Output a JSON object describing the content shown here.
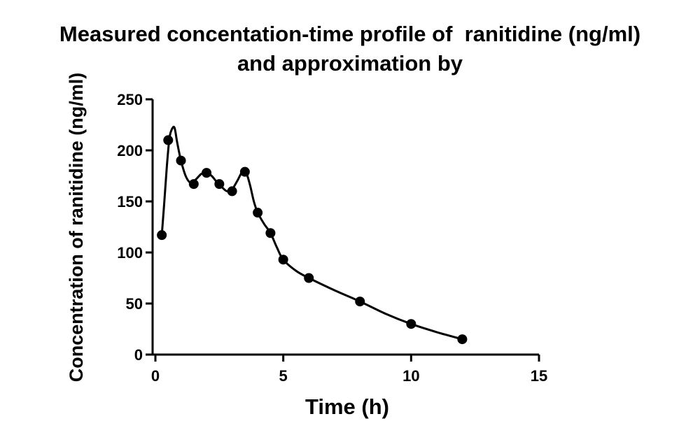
{
  "chart_data": {
    "type": "line",
    "title": "Measured concentation-time profile of  ranitidine (ng/ml) and approximation by",
    "title_lines": [
      "Measured concentation-time profile of  ranitidine (ng/ml)",
      "and approximation by"
    ],
    "xlabel": "Time (h)",
    "ylabel": "Concentration of ranitidine (ng/ml)",
    "xlim": [
      0,
      15
    ],
    "ylim": [
      0,
      250
    ],
    "x_ticks": [
      0,
      5,
      10,
      15
    ],
    "y_ticks": [
      0,
      50,
      100,
      150,
      200,
      250
    ],
    "grid": false,
    "legend": "none",
    "color": "#000000",
    "series": [
      {
        "kind": "points",
        "x": [
          0.25,
          0.5,
          1,
          1.5,
          2,
          2.5,
          3,
          3.5,
          4,
          4.5,
          5,
          6,
          8,
          10,
          12
        ],
        "y": [
          117,
          210,
          190,
          167,
          178,
          167,
          160,
          179,
          139,
          119,
          93,
          75,
          52,
          30,
          15
        ]
      },
      {
        "kind": "curve",
        "x": [
          0.25,
          0.35,
          0.45,
          0.55,
          0.65,
          0.75,
          0.85,
          1.0,
          1.2,
          1.4,
          1.6,
          1.8,
          2.0,
          2.2,
          2.4,
          2.6,
          2.8,
          3.0,
          3.2,
          3.4,
          3.55,
          3.7,
          3.85,
          4.0,
          4.25,
          4.5,
          4.75,
          5.0,
          5.5,
          6.0,
          7.0,
          8.0,
          9.0,
          10.0,
          11.0,
          12.0
        ],
        "y": [
          117,
          150,
          185,
          212,
          221,
          222,
          208,
          190,
          174,
          168,
          172,
          177,
          178,
          175,
          169,
          164,
          160,
          162,
          170,
          179,
          178,
          166,
          150,
          139,
          128,
          119,
          105,
          93,
          82,
          75,
          63,
          52,
          40,
          30,
          22,
          15
        ]
      }
    ]
  }
}
